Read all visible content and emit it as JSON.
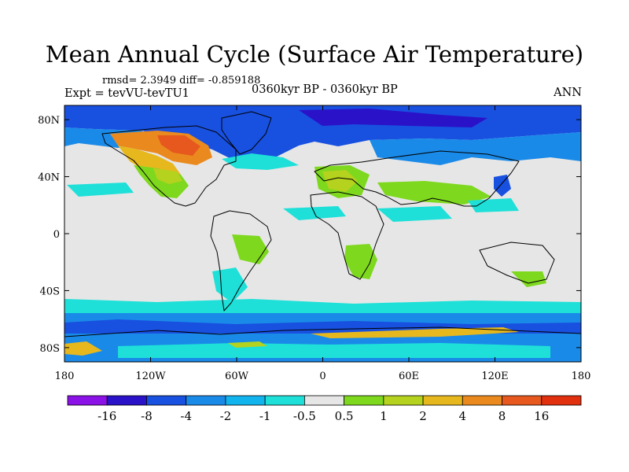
{
  "header": {
    "title": "Mean Annual Cycle (Surface Air Temperature)",
    "stats": "rmsd= 2.3949 diff= -0.859188",
    "experiment": "Expt = tevVU-tevTU1",
    "period": "0360kyr BP - 0360kyr BP",
    "season": "ANN"
  },
  "axes": {
    "lat_ticks": [
      "80N",
      "40N",
      "0",
      "40S",
      "80S"
    ],
    "lon_ticks": [
      "180",
      "120W",
      "60W",
      "0",
      "60E",
      "120E",
      "180"
    ]
  },
  "colorbar": {
    "labels": [
      "-16",
      "-8",
      "-4",
      "-2",
      "-1",
      "-0.5",
      "0.5",
      "1",
      "2",
      "4",
      "8",
      "16"
    ],
    "colors": [
      "#8a12e6",
      "#2a12c8",
      "#1850e0",
      "#1a8ae8",
      "#12b4ee",
      "#1ee0d8",
      "#e6e6e6",
      "#7ed81e",
      "#b4d21e",
      "#e6b81e",
      "#ea8a1e",
      "#e6581e",
      "#e0300e"
    ]
  },
  "map_colors": {
    "neutral": "#e6e6e6",
    "coast": "#000000"
  }
}
